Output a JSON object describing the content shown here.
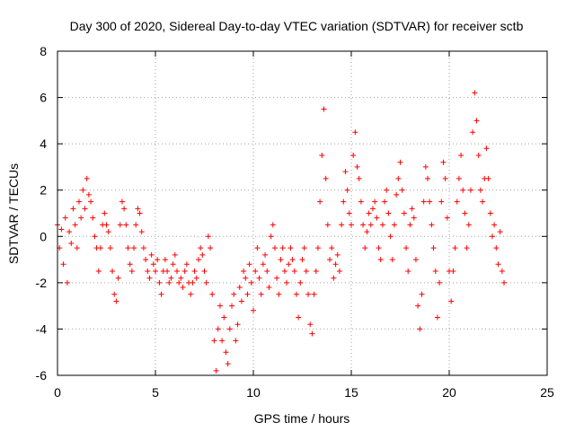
{
  "chart_data": {
    "type": "scatter",
    "title": "Day 300 of 2020, Sidereal Day-to-day VTEC variation (SDTVAR) for receiver sctb",
    "xlabel": "GPS time / hours",
    "ylabel": "SDTVAR / TECUs",
    "xlim": [
      0,
      25
    ],
    "ylim": [
      -6,
      8
    ],
    "x_ticks": [
      0,
      5,
      10,
      15,
      20,
      25
    ],
    "y_ticks": [
      -6,
      -4,
      -2,
      0,
      2,
      4,
      6,
      8
    ],
    "x_tick_labels": [
      "0",
      "5",
      "10",
      "15",
      "20",
      "25"
    ],
    "y_tick_labels": [
      "-6",
      "-4",
      "-2",
      "0",
      "2",
      "4",
      "6",
      "8"
    ],
    "grid": true,
    "marker": "plus",
    "color": "#ff0000",
    "series": [
      {
        "name": "SDTVAR",
        "points": [
          [
            0.0,
            0.5
          ],
          [
            0.1,
            -0.5
          ],
          [
            0.2,
            0.3
          ],
          [
            0.3,
            -1.2
          ],
          [
            0.4,
            0.8
          ],
          [
            0.5,
            -2.0
          ],
          [
            0.6,
            0.2
          ],
          [
            0.7,
            -0.3
          ],
          [
            0.8,
            1.2
          ],
          [
            0.9,
            0.5
          ],
          [
            1.0,
            -0.5
          ],
          [
            1.1,
            1.5
          ],
          [
            1.2,
            0.8
          ],
          [
            1.3,
            2.0
          ],
          [
            1.4,
            1.2
          ],
          [
            1.5,
            2.5
          ],
          [
            1.6,
            1.8
          ],
          [
            1.7,
            1.5
          ],
          [
            1.8,
            0.8
          ],
          [
            1.9,
            0.0
          ],
          [
            2.0,
            -0.5
          ],
          [
            2.1,
            -1.5
          ],
          [
            2.2,
            -0.5
          ],
          [
            2.3,
            0.5
          ],
          [
            2.4,
            1.0
          ],
          [
            2.5,
            0.5
          ],
          [
            2.6,
            0.2
          ],
          [
            2.7,
            -0.5
          ],
          [
            2.8,
            -1.5
          ],
          [
            2.9,
            -2.5
          ],
          [
            3.0,
            -2.8
          ],
          [
            3.1,
            -1.8
          ],
          [
            3.2,
            0.5
          ],
          [
            3.3,
            1.5
          ],
          [
            3.4,
            1.2
          ],
          [
            3.5,
            0.5
          ],
          [
            3.6,
            -0.5
          ],
          [
            3.7,
            -1.2
          ],
          [
            3.8,
            -1.5
          ],
          [
            3.9,
            -0.5
          ],
          [
            4.0,
            0.5
          ],
          [
            4.1,
            1.2
          ],
          [
            4.2,
            1.0
          ],
          [
            4.3,
            0.2
          ],
          [
            4.4,
            -0.5
          ],
          [
            4.5,
            -1.0
          ],
          [
            4.6,
            -1.5
          ],
          [
            4.7,
            -1.8
          ],
          [
            4.8,
            -0.8
          ],
          [
            4.9,
            -1.2
          ],
          [
            5.0,
            -1.5
          ],
          [
            5.1,
            -1.0
          ],
          [
            5.2,
            -2.0
          ],
          [
            5.3,
            -2.5
          ],
          [
            5.4,
            -1.5
          ],
          [
            5.5,
            -1.0
          ],
          [
            5.6,
            -1.5
          ],
          [
            5.7,
            -2.0
          ],
          [
            5.8,
            -1.8
          ],
          [
            5.9,
            -1.2
          ],
          [
            6.0,
            -0.8
          ],
          [
            6.1,
            -1.5
          ],
          [
            6.2,
            -2.0
          ],
          [
            6.3,
            -1.8
          ],
          [
            6.4,
            -2.2
          ],
          [
            6.5,
            -1.5
          ],
          [
            6.6,
            -1.2
          ],
          [
            6.7,
            -2.0
          ],
          [
            6.8,
            -2.5
          ],
          [
            6.9,
            -2.0
          ],
          [
            7.0,
            -1.5
          ],
          [
            7.1,
            -1.8
          ],
          [
            7.2,
            -1.0
          ],
          [
            7.3,
            -0.5
          ],
          [
            7.4,
            -0.8
          ],
          [
            7.5,
            -1.5
          ],
          [
            7.6,
            -2.0
          ],
          [
            7.7,
            0.0
          ],
          [
            7.8,
            -0.5
          ],
          [
            7.9,
            -2.5
          ],
          [
            8.0,
            -4.5
          ],
          [
            8.1,
            -5.8
          ],
          [
            8.2,
            -4.0
          ],
          [
            8.3,
            -3.0
          ],
          [
            8.4,
            -4.5
          ],
          [
            8.5,
            -3.5
          ],
          [
            8.6,
            -5.0
          ],
          [
            8.7,
            -5.5
          ],
          [
            8.8,
            -4.0
          ],
          [
            8.9,
            -3.0
          ],
          [
            9.0,
            -2.5
          ],
          [
            9.1,
            -4.5
          ],
          [
            9.2,
            -3.8
          ],
          [
            9.3,
            -2.2
          ],
          [
            9.4,
            -2.8
          ],
          [
            9.5,
            -1.5
          ],
          [
            9.6,
            -1.8
          ],
          [
            9.7,
            -2.5
          ],
          [
            9.8,
            -1.2
          ],
          [
            9.9,
            -2.0
          ],
          [
            10.0,
            -3.2
          ],
          [
            10.1,
            -1.5
          ],
          [
            10.2,
            -0.5
          ],
          [
            10.3,
            -1.8
          ],
          [
            10.4,
            -2.5
          ],
          [
            10.5,
            -1.2
          ],
          [
            10.6,
            -0.8
          ],
          [
            10.7,
            -1.5
          ],
          [
            10.8,
            -2.2
          ],
          [
            10.9,
            0.0
          ],
          [
            11.0,
            0.5
          ],
          [
            11.1,
            -0.5
          ],
          [
            11.2,
            -1.8
          ],
          [
            11.3,
            -2.5
          ],
          [
            11.4,
            -1.0
          ],
          [
            11.5,
            -0.5
          ],
          [
            11.6,
            -1.5
          ],
          [
            11.7,
            -2.0
          ],
          [
            11.8,
            -1.2
          ],
          [
            11.9,
            -0.5
          ],
          [
            12.0,
            -1.0
          ],
          [
            12.1,
            -1.5
          ],
          [
            12.2,
            -2.5
          ],
          [
            12.3,
            -3.5
          ],
          [
            12.4,
            -2.0
          ],
          [
            12.5,
            -1.0
          ],
          [
            12.6,
            -0.5
          ],
          [
            12.7,
            -1.5
          ],
          [
            12.8,
            -2.5
          ],
          [
            12.9,
            -3.8
          ],
          [
            13.0,
            -4.2
          ],
          [
            13.1,
            -2.5
          ],
          [
            13.2,
            -1.5
          ],
          [
            13.3,
            -0.5
          ],
          [
            13.4,
            1.5
          ],
          [
            13.5,
            3.5
          ],
          [
            13.6,
            5.5
          ],
          [
            13.7,
            2.5
          ],
          [
            13.8,
            0.5
          ],
          [
            13.9,
            -1.0
          ],
          [
            14.0,
            -0.5
          ],
          [
            14.1,
            -1.8
          ],
          [
            14.2,
            -1.2
          ],
          [
            14.3,
            -0.8
          ],
          [
            14.4,
            -1.5
          ],
          [
            14.5,
            0.5
          ],
          [
            14.6,
            1.5
          ],
          [
            14.7,
            2.8
          ],
          [
            14.8,
            2.0
          ],
          [
            14.9,
            1.0
          ],
          [
            15.0,
            0.5
          ],
          [
            15.1,
            3.5
          ],
          [
            15.2,
            4.5
          ],
          [
            15.3,
            3.0
          ],
          [
            15.4,
            2.5
          ],
          [
            15.5,
            1.5
          ],
          [
            15.6,
            0.5
          ],
          [
            15.7,
            -0.5
          ],
          [
            15.8,
            0.2
          ],
          [
            15.9,
            1.0
          ],
          [
            16.0,
            0.5
          ],
          [
            16.1,
            1.2
          ],
          [
            16.2,
            1.5
          ],
          [
            16.3,
            0.8
          ],
          [
            16.4,
            -0.5
          ],
          [
            16.5,
            -1.0
          ],
          [
            16.6,
            0.5
          ],
          [
            16.7,
            1.5
          ],
          [
            16.8,
            2.0
          ],
          [
            16.9,
            1.0
          ],
          [
            17.0,
            0.0
          ],
          [
            17.1,
            -1.0
          ],
          [
            17.2,
            0.5
          ],
          [
            17.3,
            1.8
          ],
          [
            17.4,
            2.5
          ],
          [
            17.5,
            3.2
          ],
          [
            17.6,
            2.0
          ],
          [
            17.7,
            1.0
          ],
          [
            17.8,
            -0.5
          ],
          [
            17.9,
            -1.5
          ],
          [
            18.0,
            0.5
          ],
          [
            18.1,
            1.2
          ],
          [
            18.2,
            0.8
          ],
          [
            18.3,
            -1.0
          ],
          [
            18.4,
            -3.0
          ],
          [
            18.5,
            -4.0
          ],
          [
            18.6,
            -2.5
          ],
          [
            18.7,
            1.5
          ],
          [
            18.8,
            3.0
          ],
          [
            18.9,
            2.5
          ],
          [
            19.0,
            1.5
          ],
          [
            19.1,
            0.5
          ],
          [
            19.2,
            -0.5
          ],
          [
            19.3,
            -1.5
          ],
          [
            19.4,
            -3.5
          ],
          [
            19.5,
            -2.0
          ],
          [
            19.6,
            1.5
          ],
          [
            19.7,
            3.2
          ],
          [
            19.8,
            2.5
          ],
          [
            19.9,
            0.8
          ],
          [
            20.0,
            -1.5
          ],
          [
            20.1,
            -2.8
          ],
          [
            20.2,
            -1.5
          ],
          [
            20.3,
            -0.5
          ],
          [
            20.4,
            1.5
          ],
          [
            20.5,
            2.5
          ],
          [
            20.6,
            3.5
          ],
          [
            20.7,
            2.0
          ],
          [
            20.8,
            1.0
          ],
          [
            20.9,
            -0.5
          ],
          [
            21.0,
            0.5
          ],
          [
            21.1,
            2.0
          ],
          [
            21.2,
            4.5
          ],
          [
            21.3,
            6.2
          ],
          [
            21.4,
            5.0
          ],
          [
            21.5,
            3.5
          ],
          [
            21.6,
            2.0
          ],
          [
            21.7,
            1.5
          ],
          [
            21.8,
            2.5
          ],
          [
            21.9,
            3.8
          ],
          [
            22.0,
            2.5
          ],
          [
            22.1,
            1.0
          ],
          [
            22.2,
            0.0
          ],
          [
            22.3,
            0.5
          ],
          [
            22.4,
            -0.5
          ],
          [
            22.5,
            -1.2
          ],
          [
            22.6,
            0.2
          ],
          [
            22.7,
            -1.5
          ],
          [
            22.8,
            -2.0
          ]
        ]
      }
    ]
  }
}
